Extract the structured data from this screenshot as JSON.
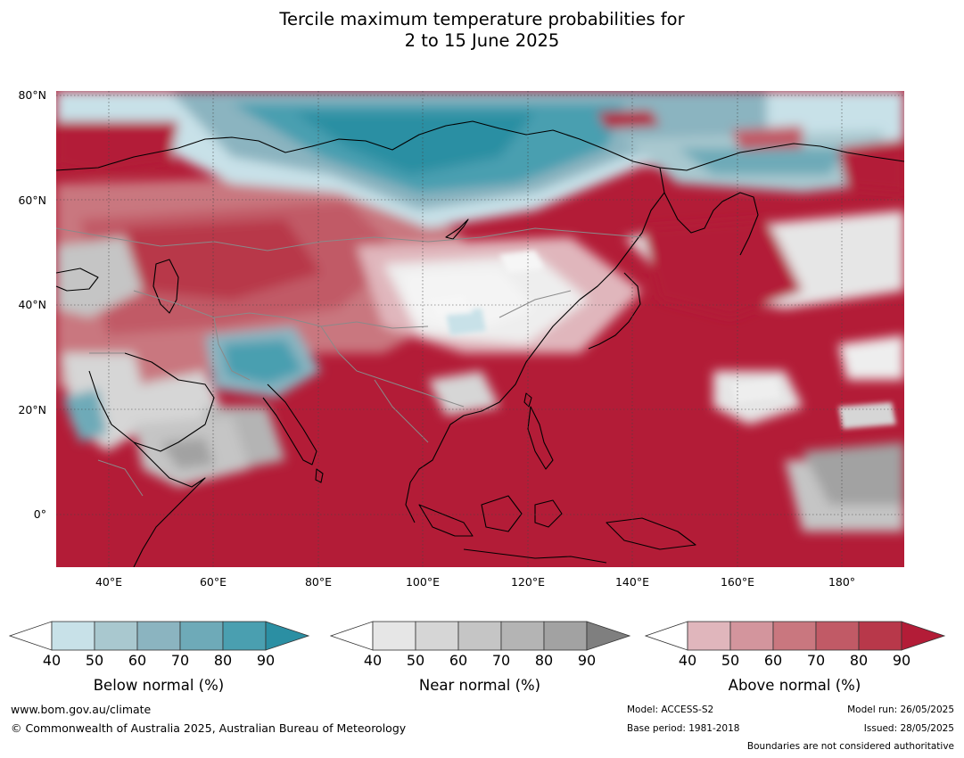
{
  "title": {
    "line1": "Tercile maximum temperature probabilities for",
    "line2": "2 to 15 June 2025"
  },
  "map": {
    "lat_ticks": [
      "80°N",
      "60°N",
      "40°N",
      "20°N",
      "0°"
    ],
    "lon_ticks": [
      "40°E",
      "60°E",
      "80°E",
      "100°E",
      "120°E",
      "140°E",
      "160°E",
      "180°"
    ],
    "extent": {
      "lon_min": 30,
      "lon_max": 192,
      "lat_min": -10,
      "lat_max": 80
    },
    "regions": [
      {
        "name": "arctic-russia",
        "category": "below",
        "probability": 80
      },
      {
        "name": "india-ocean-southeast-asia",
        "category": "above",
        "probability": 90
      },
      {
        "name": "central-asia",
        "category": "above",
        "probability": 70
      },
      {
        "name": "mongolia-north-china",
        "category": "near",
        "probability": 40
      },
      {
        "name": "north-pacific",
        "category": "above",
        "probability": 90
      }
    ]
  },
  "colorbars": [
    {
      "label": "Below normal (%)",
      "ticks": [
        "40",
        "50",
        "60",
        "70",
        "80",
        "90"
      ],
      "colors": [
        "#ffffff",
        "#c8e1e8",
        "#a9c8cf",
        "#8bb4c0",
        "#6eaab8",
        "#4a9fb0",
        "#2b8fa3"
      ]
    },
    {
      "label": "Near normal (%)",
      "ticks": [
        "40",
        "50",
        "60",
        "70",
        "80",
        "90"
      ],
      "colors": [
        "#ffffff",
        "#e6e6e6",
        "#d6d6d6",
        "#c5c5c5",
        "#b4b4b4",
        "#a2a2a2",
        "#7f7f7f"
      ]
    },
    {
      "label": "Above normal (%)",
      "ticks": [
        "40",
        "50",
        "60",
        "70",
        "80",
        "90"
      ],
      "colors": [
        "#ffffff",
        "#e0b6bc",
        "#d3959d",
        "#c9777f",
        "#c15a66",
        "#b8384a",
        "#b31c37"
      ]
    }
  ],
  "footer": {
    "website": "www.bom.gov.au/climate",
    "copyright": "© Commonwealth of Australia 2025, Australian Bureau of Meteorology",
    "model": "Model: ACCESS-S2",
    "base_period": "Base period: 1981-2018",
    "model_run": "Model run: 26/05/2025",
    "issued": "Issued: 28/05/2025",
    "boundaries_note": "Boundaries are not considered authoritative"
  }
}
